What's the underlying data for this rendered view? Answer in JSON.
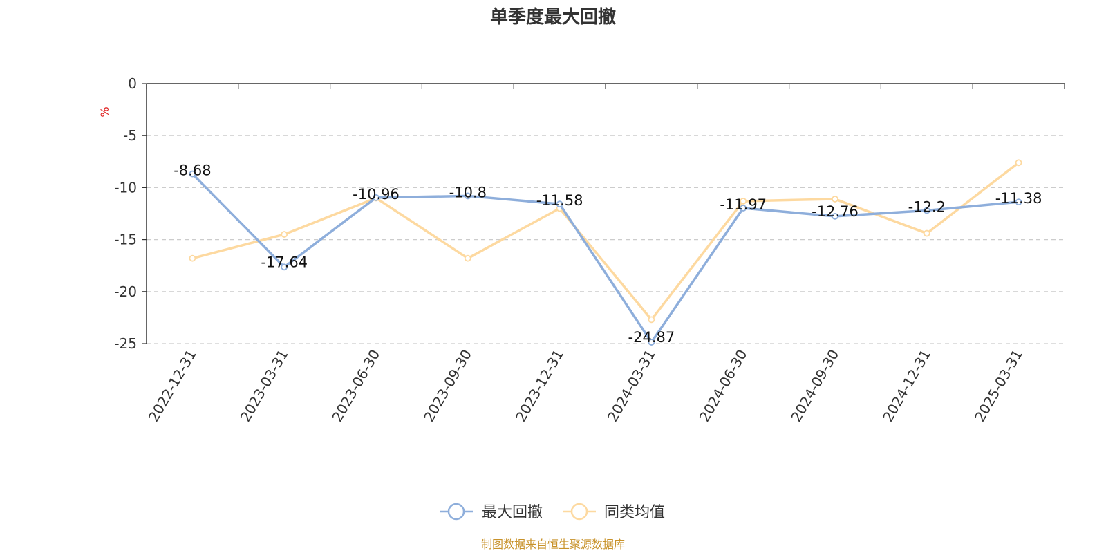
{
  "chart_data": {
    "type": "line",
    "title": "单季度最大回撤",
    "ylabel": "%",
    "ylim": [
      -25,
      0
    ],
    "yticks": [
      0,
      -5,
      -10,
      -15,
      -20,
      -25
    ],
    "grid": true,
    "legend_position": "bottom",
    "categories": [
      "2022-12-31",
      "2023-03-31",
      "2023-06-30",
      "2023-09-30",
      "2023-12-31",
      "2024-03-31",
      "2024-06-30",
      "2024-09-30",
      "2024-12-31",
      "2025-03-31"
    ],
    "series": [
      {
        "name": "最大回撤",
        "color": "#8eaedb",
        "values": [
          -8.68,
          -17.64,
          -10.96,
          -10.8,
          -11.58,
          -24.87,
          -11.97,
          -12.76,
          -12.2,
          -11.38
        ],
        "data_labels": [
          "-8.68",
          "-17.64",
          "-10.96",
          "-10.8",
          "-11.58",
          "-24.87",
          "-11.97",
          "-12.76",
          "-12.2",
          "-11.38"
        ]
      },
      {
        "name": "同类均值",
        "color": "#fdd9a0",
        "values": [
          -16.8,
          -14.5,
          -11.0,
          -16.8,
          -12.0,
          -22.7,
          -11.3,
          -11.1,
          -14.4,
          -7.6
        ]
      }
    ],
    "unit_color": "#e02020"
  },
  "source_text": "制图数据来自恒生聚源数据库",
  "source_color": "#c8922a"
}
